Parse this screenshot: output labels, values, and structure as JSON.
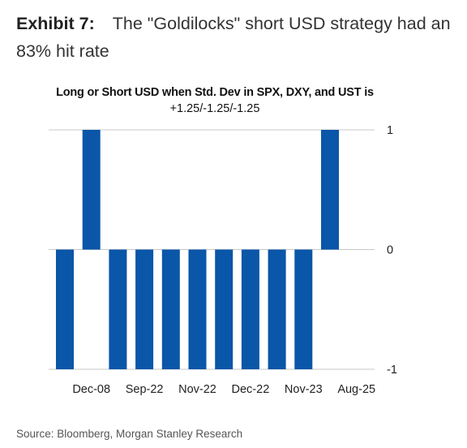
{
  "exhibit": {
    "label": "Exhibit 7:",
    "text": "The \"Goldilocks\" short USD strategy had an 83% hit rate"
  },
  "source": "Source: Bloomberg, Morgan Stanley Research",
  "chart_data": {
    "type": "bar",
    "title_line1": "Long or Short USD when Std. Dev in SPX, DXY, and UST is",
    "title_line2": "+1.25/-1.25/-1.25",
    "xlabel": "",
    "ylabel": "",
    "ylim": [
      -1,
      1
    ],
    "y_ticks": [
      1,
      0,
      -1
    ],
    "y_axis_position": "right",
    "grid": true,
    "bar_color": "#0a56a8",
    "categories": [
      "",
      "Dec-08",
      "",
      "Sep-22",
      "",
      "Nov-22",
      "",
      "Dec-22",
      "",
      "Nov-23",
      "",
      "Aug-25"
    ],
    "values": [
      -1,
      1,
      -1,
      -1,
      -1,
      -1,
      -1,
      -1,
      -1,
      -1,
      1,
      0
    ],
    "x_tick_labels": [
      "Dec-08",
      "Sep-22",
      "Nov-22",
      "Dec-22",
      "Nov-23",
      "Aug-25"
    ]
  }
}
